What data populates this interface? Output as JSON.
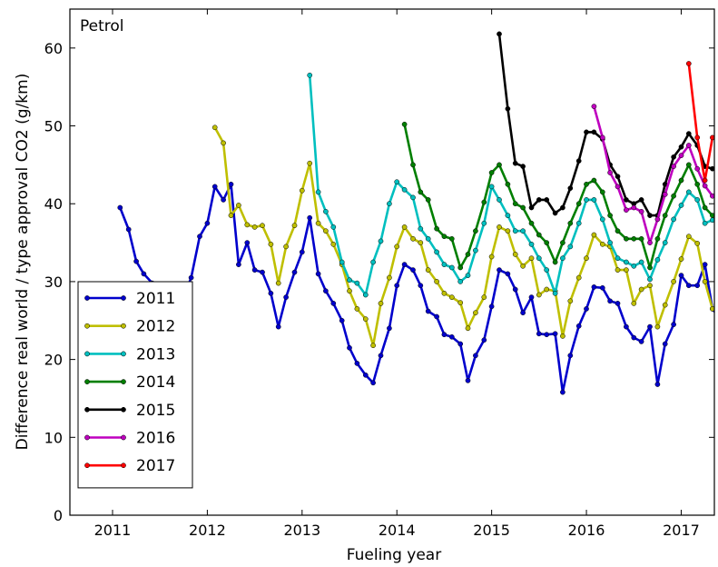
{
  "chart_data": {
    "type": "line",
    "title": "",
    "annotation": "Petrol",
    "xlabel": "Fueling year",
    "ylabel": "Difference real world / type approval CO2 (g/km)",
    "xlim": [
      2010.55,
      2017.35
    ],
    "ylim": [
      0,
      65
    ],
    "xticks": [
      2011,
      2012,
      2013,
      2014,
      2015,
      2016,
      2017
    ],
    "xtick_labels": [
      "2011",
      "2012",
      "2013",
      "2014",
      "2015",
      "2016",
      "2017"
    ],
    "yticks": [
      0,
      10,
      20,
      30,
      40,
      50,
      60
    ],
    "ytick_labels": [
      "0",
      "10",
      "20",
      "30",
      "40",
      "50",
      "60"
    ],
    "grid": false,
    "legend_position": "bottom-left",
    "series": [
      {
        "name": "2011",
        "color": "#0000cc",
        "points": [
          [
            2011.08,
            39.5
          ],
          [
            2011.17,
            36.7
          ],
          [
            2011.25,
            32.6
          ],
          [
            2011.33,
            31.0
          ],
          [
            2011.42,
            29.8
          ],
          [
            2011.5,
            29.2
          ],
          [
            2011.58,
            29.2
          ],
          [
            2011.67,
            28.0
          ],
          [
            2011.75,
            28.1
          ],
          [
            2011.83,
            30.5
          ],
          [
            2011.92,
            35.8
          ],
          [
            2012.0,
            37.5
          ],
          [
            2012.08,
            42.2
          ],
          [
            2012.17,
            40.5
          ],
          [
            2012.25,
            42.5
          ],
          [
            2012.33,
            32.2
          ],
          [
            2012.42,
            35.0
          ],
          [
            2012.5,
            31.5
          ],
          [
            2012.58,
            31.2
          ],
          [
            2012.67,
            28.5
          ],
          [
            2012.75,
            24.2
          ],
          [
            2012.83,
            28.0
          ],
          [
            2012.92,
            31.2
          ],
          [
            2013.0,
            33.8
          ],
          [
            2013.08,
            38.2
          ],
          [
            2013.17,
            31.0
          ],
          [
            2013.25,
            28.8
          ],
          [
            2013.33,
            27.2
          ],
          [
            2013.42,
            25.0
          ],
          [
            2013.5,
            21.5
          ],
          [
            2013.58,
            19.5
          ],
          [
            2013.67,
            18.0
          ],
          [
            2013.75,
            17.0
          ],
          [
            2013.83,
            20.5
          ],
          [
            2013.92,
            24.0
          ],
          [
            2014.0,
            29.5
          ],
          [
            2014.08,
            32.2
          ],
          [
            2014.17,
            31.5
          ],
          [
            2014.25,
            29.5
          ],
          [
            2014.33,
            26.2
          ],
          [
            2014.42,
            25.5
          ],
          [
            2014.5,
            23.2
          ],
          [
            2014.58,
            22.9
          ],
          [
            2014.67,
            22.0
          ],
          [
            2014.75,
            17.3
          ],
          [
            2014.83,
            20.5
          ],
          [
            2014.92,
            22.5
          ],
          [
            2015.0,
            26.8
          ],
          [
            2015.08,
            31.5
          ],
          [
            2015.17,
            31.0
          ],
          [
            2015.25,
            29.0
          ],
          [
            2015.33,
            26.0
          ],
          [
            2015.42,
            28.0
          ],
          [
            2015.5,
            23.3
          ],
          [
            2015.58,
            23.2
          ],
          [
            2015.67,
            23.3
          ],
          [
            2015.75,
            15.8
          ],
          [
            2015.83,
            20.5
          ],
          [
            2015.92,
            24.3
          ],
          [
            2016.0,
            26.5
          ],
          [
            2016.08,
            29.3
          ],
          [
            2016.17,
            29.2
          ],
          [
            2016.25,
            27.5
          ],
          [
            2016.33,
            27.2
          ],
          [
            2016.42,
            24.2
          ],
          [
            2016.5,
            22.8
          ],
          [
            2016.58,
            22.3
          ],
          [
            2016.67,
            24.2
          ],
          [
            2016.75,
            16.8
          ],
          [
            2016.83,
            22.0
          ],
          [
            2016.92,
            24.5
          ],
          [
            2017.0,
            30.8
          ],
          [
            2017.08,
            29.5
          ],
          [
            2017.17,
            29.5
          ],
          [
            2017.25,
            32.2
          ],
          [
            2017.33,
            26.5
          ],
          [
            2017.42,
            25.0
          ]
        ]
      },
      {
        "name": "2012",
        "color": "#bfbf00",
        "points": [
          [
            2012.08,
            49.8
          ],
          [
            2012.17,
            47.8
          ],
          [
            2012.25,
            38.5
          ],
          [
            2012.33,
            39.8
          ],
          [
            2012.42,
            37.3
          ],
          [
            2012.5,
            37.0
          ],
          [
            2012.58,
            37.2
          ],
          [
            2012.67,
            34.8
          ],
          [
            2012.75,
            29.8
          ],
          [
            2012.83,
            34.5
          ],
          [
            2012.92,
            37.2
          ],
          [
            2013.0,
            41.7
          ],
          [
            2013.08,
            45.2
          ],
          [
            2013.17,
            37.5
          ],
          [
            2013.25,
            36.5
          ],
          [
            2013.33,
            34.8
          ],
          [
            2013.42,
            32.2
          ],
          [
            2013.5,
            28.8
          ],
          [
            2013.58,
            26.5
          ],
          [
            2013.67,
            25.2
          ],
          [
            2013.75,
            21.8
          ],
          [
            2013.83,
            27.2
          ],
          [
            2013.92,
            30.5
          ],
          [
            2014.0,
            34.5
          ],
          [
            2014.08,
            37.0
          ],
          [
            2014.17,
            35.5
          ],
          [
            2014.25,
            35.0
          ],
          [
            2014.33,
            31.5
          ],
          [
            2014.42,
            30.0
          ],
          [
            2014.5,
            28.5
          ],
          [
            2014.58,
            28.0
          ],
          [
            2014.67,
            27.3
          ],
          [
            2014.75,
            24.0
          ],
          [
            2014.83,
            26.0
          ],
          [
            2014.92,
            28.0
          ],
          [
            2015.0,
            33.2
          ],
          [
            2015.08,
            37.0
          ],
          [
            2015.17,
            36.5
          ],
          [
            2015.25,
            33.5
          ],
          [
            2015.33,
            32.0
          ],
          [
            2015.42,
            33.0
          ],
          [
            2015.5,
            28.3
          ],
          [
            2015.58,
            29.0
          ],
          [
            2015.67,
            28.8
          ],
          [
            2015.75,
            23.0
          ],
          [
            2015.83,
            27.5
          ],
          [
            2015.92,
            30.5
          ],
          [
            2016.0,
            33.0
          ],
          [
            2016.08,
            36.0
          ],
          [
            2016.17,
            34.8
          ],
          [
            2016.25,
            34.5
          ],
          [
            2016.33,
            31.5
          ],
          [
            2016.42,
            31.5
          ],
          [
            2016.5,
            27.2
          ],
          [
            2016.58,
            29.0
          ],
          [
            2016.67,
            29.5
          ],
          [
            2016.75,
            24.2
          ],
          [
            2016.83,
            27.0
          ],
          [
            2016.92,
            30.0
          ],
          [
            2017.0,
            32.9
          ],
          [
            2017.08,
            35.8
          ],
          [
            2017.17,
            34.9
          ],
          [
            2017.25,
            30.0
          ],
          [
            2017.33,
            26.5
          ]
        ]
      },
      {
        "name": "2013",
        "color": "#00bfbf",
        "points": [
          [
            2013.08,
            56.5
          ],
          [
            2013.17,
            41.5
          ],
          [
            2013.25,
            39.0
          ],
          [
            2013.33,
            37.0
          ],
          [
            2013.42,
            32.5
          ],
          [
            2013.5,
            30.2
          ],
          [
            2013.58,
            29.8
          ],
          [
            2013.67,
            28.3
          ],
          [
            2013.75,
            32.5
          ],
          [
            2013.83,
            35.2
          ],
          [
            2013.92,
            40.0
          ],
          [
            2014.0,
            42.8
          ],
          [
            2014.08,
            41.8
          ],
          [
            2014.17,
            40.8
          ],
          [
            2014.25,
            36.8
          ],
          [
            2014.33,
            35.5
          ],
          [
            2014.42,
            33.8
          ],
          [
            2014.5,
            32.2
          ],
          [
            2014.58,
            31.8
          ],
          [
            2014.67,
            30.0
          ],
          [
            2014.75,
            30.8
          ],
          [
            2014.83,
            34.0
          ],
          [
            2014.92,
            37.5
          ],
          [
            2015.0,
            42.2
          ],
          [
            2015.08,
            40.5
          ],
          [
            2015.17,
            38.5
          ],
          [
            2015.25,
            36.5
          ],
          [
            2015.33,
            36.5
          ],
          [
            2015.42,
            34.8
          ],
          [
            2015.5,
            33.0
          ],
          [
            2015.58,
            31.5
          ],
          [
            2015.67,
            28.5
          ],
          [
            2015.75,
            33.0
          ],
          [
            2015.83,
            34.5
          ],
          [
            2015.92,
            37.5
          ],
          [
            2016.0,
            40.5
          ],
          [
            2016.08,
            40.5
          ],
          [
            2016.17,
            38.0
          ],
          [
            2016.25,
            35.0
          ],
          [
            2016.33,
            33.0
          ],
          [
            2016.42,
            32.5
          ],
          [
            2016.5,
            32.0
          ],
          [
            2016.58,
            32.5
          ],
          [
            2016.67,
            30.3
          ],
          [
            2016.75,
            32.8
          ],
          [
            2016.83,
            35.0
          ],
          [
            2016.92,
            38.0
          ],
          [
            2017.0,
            39.8
          ],
          [
            2017.08,
            41.5
          ],
          [
            2017.17,
            40.5
          ],
          [
            2017.25,
            37.5
          ],
          [
            2017.33,
            37.9
          ]
        ]
      },
      {
        "name": "2014",
        "color": "#007f00",
        "points": [
          [
            2014.08,
            50.2
          ],
          [
            2014.17,
            45.0
          ],
          [
            2014.25,
            41.5
          ],
          [
            2014.33,
            40.5
          ],
          [
            2014.42,
            36.8
          ],
          [
            2014.5,
            35.8
          ],
          [
            2014.58,
            35.5
          ],
          [
            2014.67,
            31.8
          ],
          [
            2014.75,
            33.5
          ],
          [
            2014.83,
            36.5
          ],
          [
            2014.92,
            40.2
          ],
          [
            2015.0,
            44.0
          ],
          [
            2015.08,
            45.0
          ],
          [
            2015.17,
            42.5
          ],
          [
            2015.25,
            40.0
          ],
          [
            2015.33,
            39.5
          ],
          [
            2015.42,
            37.5
          ],
          [
            2015.5,
            36.0
          ],
          [
            2015.58,
            35.0
          ],
          [
            2015.67,
            32.5
          ],
          [
            2015.75,
            35.0
          ],
          [
            2015.83,
            37.5
          ],
          [
            2015.92,
            40.0
          ],
          [
            2016.0,
            42.5
          ],
          [
            2016.08,
            43.0
          ],
          [
            2016.17,
            41.5
          ],
          [
            2016.25,
            38.5
          ],
          [
            2016.33,
            36.5
          ],
          [
            2016.42,
            35.5
          ],
          [
            2016.5,
            35.5
          ],
          [
            2016.58,
            35.5
          ],
          [
            2016.67,
            31.8
          ],
          [
            2016.75,
            35.5
          ],
          [
            2016.83,
            38.5
          ],
          [
            2016.92,
            41.0
          ],
          [
            2017.0,
            43.0
          ],
          [
            2017.08,
            45.0
          ],
          [
            2017.17,
            42.5
          ],
          [
            2017.25,
            39.5
          ],
          [
            2017.33,
            38.5
          ]
        ]
      },
      {
        "name": "2015",
        "color": "#000000",
        "points": [
          [
            2015.08,
            61.8
          ],
          [
            2015.17,
            52.2
          ],
          [
            2015.25,
            45.2
          ],
          [
            2015.33,
            44.8
          ],
          [
            2015.42,
            39.5
          ],
          [
            2015.5,
            40.5
          ],
          [
            2015.58,
            40.5
          ],
          [
            2015.67,
            38.8
          ],
          [
            2015.75,
            39.5
          ],
          [
            2015.83,
            42.0
          ],
          [
            2015.92,
            45.5
          ],
          [
            2016.0,
            49.2
          ],
          [
            2016.08,
            49.2
          ],
          [
            2016.17,
            48.3
          ],
          [
            2016.25,
            45.0
          ],
          [
            2016.33,
            43.5
          ],
          [
            2016.42,
            40.5
          ],
          [
            2016.5,
            40.0
          ],
          [
            2016.58,
            40.5
          ],
          [
            2016.67,
            38.5
          ],
          [
            2016.75,
            38.5
          ],
          [
            2016.83,
            42.5
          ],
          [
            2016.92,
            46.0
          ],
          [
            2017.0,
            47.3
          ],
          [
            2017.08,
            49.0
          ],
          [
            2017.17,
            47.5
          ],
          [
            2017.25,
            44.8
          ],
          [
            2017.33,
            44.5
          ]
        ]
      },
      {
        "name": "2016",
        "color": "#bf00bf",
        "points": [
          [
            2016.08,
            52.5
          ],
          [
            2016.17,
            48.5
          ],
          [
            2016.25,
            44.0
          ],
          [
            2016.33,
            42.2
          ],
          [
            2016.42,
            39.2
          ],
          [
            2016.5,
            39.5
          ],
          [
            2016.58,
            39.0
          ],
          [
            2016.67,
            35.0
          ],
          [
            2016.75,
            38.0
          ],
          [
            2016.83,
            41.2
          ],
          [
            2016.92,
            44.8
          ],
          [
            2017.0,
            46.2
          ],
          [
            2017.08,
            47.5
          ],
          [
            2017.17,
            44.5
          ],
          [
            2017.25,
            42.3
          ],
          [
            2017.33,
            41.0
          ]
        ]
      },
      {
        "name": "2017",
        "color": "#ff0000",
        "points": [
          [
            2017.08,
            58.0
          ],
          [
            2017.17,
            48.5
          ],
          [
            2017.25,
            43.0
          ],
          [
            2017.33,
            48.5
          ]
        ]
      }
    ]
  }
}
